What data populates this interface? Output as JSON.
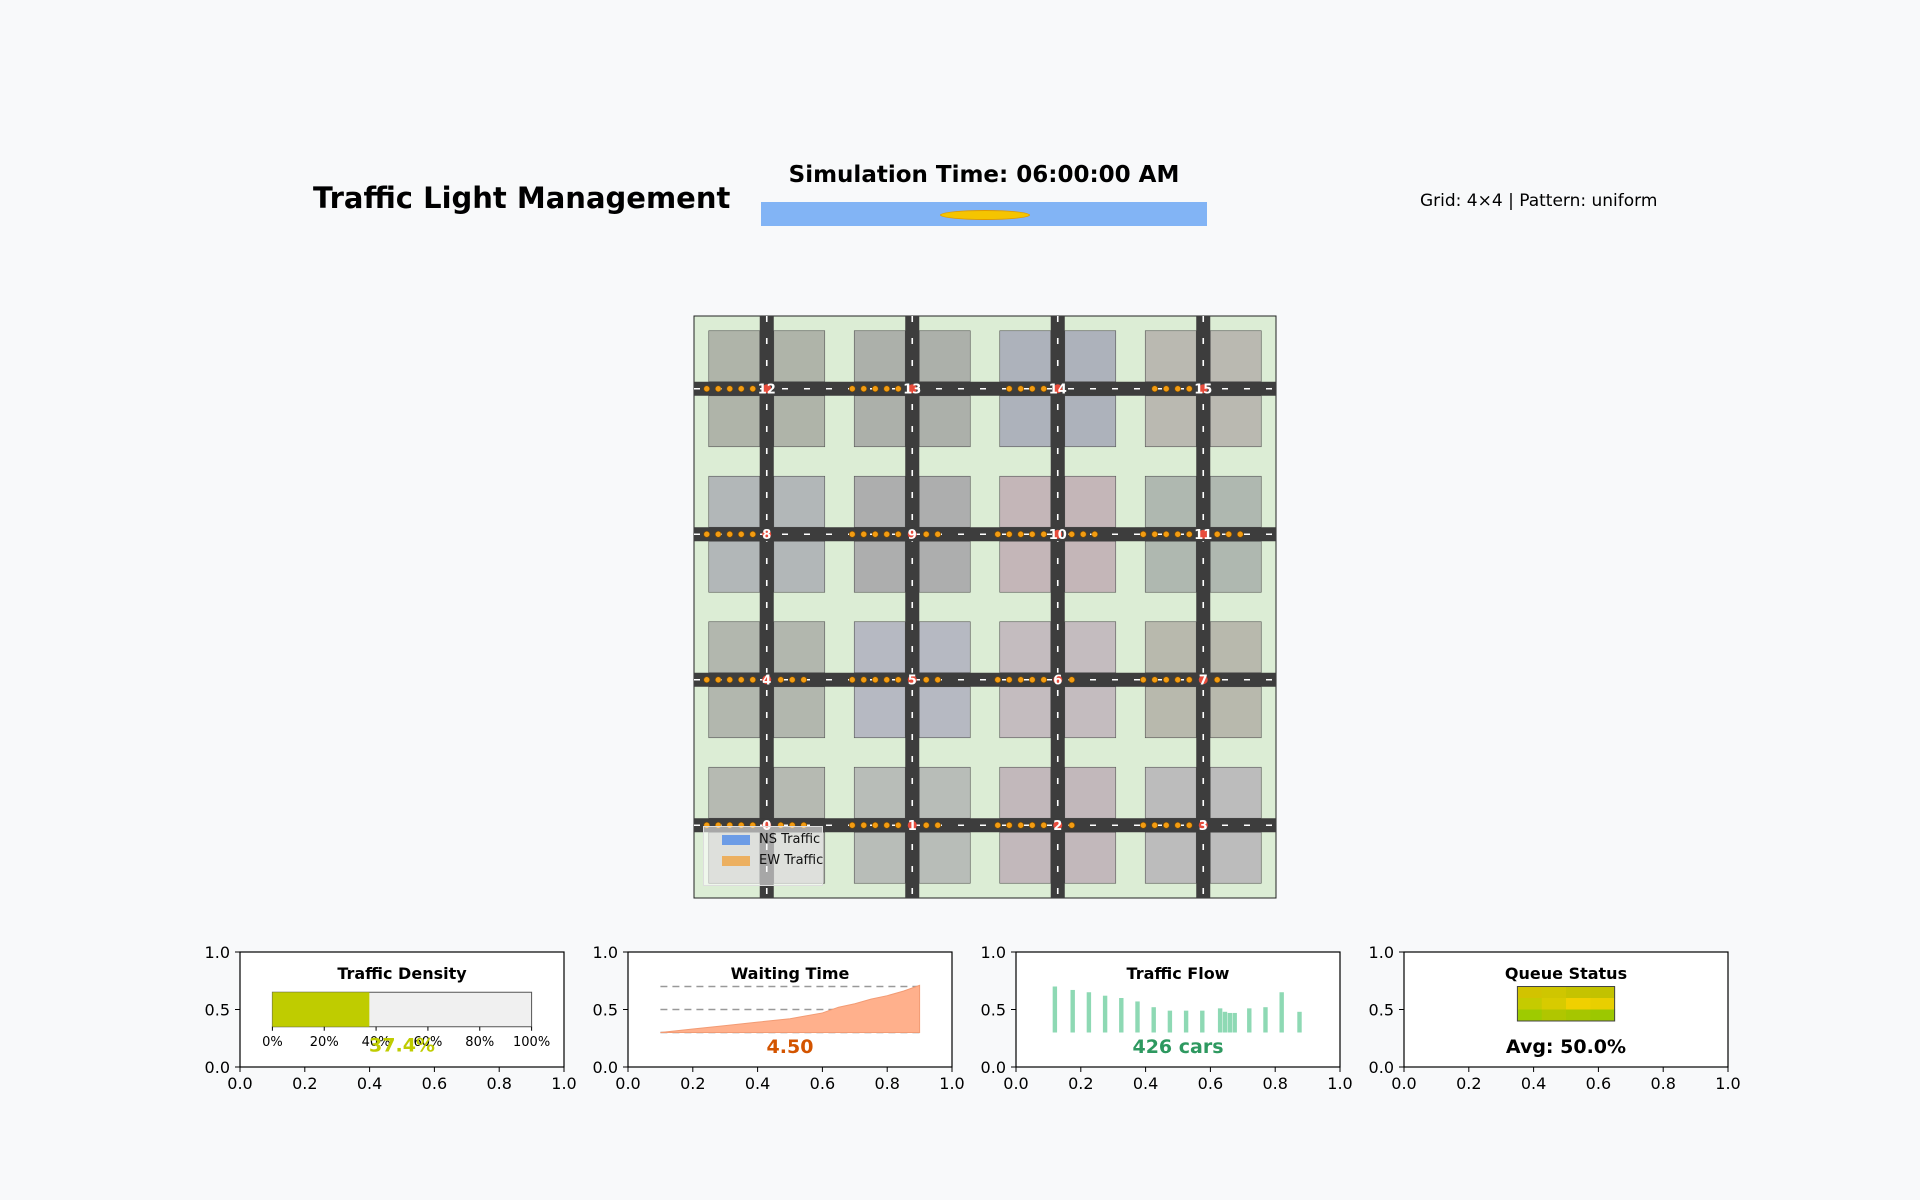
{
  "header": {
    "title": "Traffic Light Management",
    "sim_time": "Simulation Time: 06:00:00 AM",
    "grid_info": "Grid: 4×4 | Pattern: uniform"
  },
  "colors": {
    "page_bg": "#f8f9fa",
    "sky": "#82b4f5",
    "sun": "#f5c400",
    "grass": "#dcedd5",
    "road": "#3d3d3d",
    "car": "#f39c12",
    "density": "#bfcc00",
    "waiting": "#ffb08c",
    "waiting_text": "#d35400",
    "flow": "#8ed9b4",
    "flow_text": "#2e9960"
  },
  "map": {
    "grid_size": 4,
    "intersections": [
      {
        "id": "0",
        "row": 0,
        "col": 0,
        "cars_left": 5,
        "cars_right": 3
      },
      {
        "id": "1",
        "row": 0,
        "col": 1,
        "cars_left": 5,
        "cars_right": 2
      },
      {
        "id": "2",
        "row": 0,
        "col": 2,
        "cars_left": 5,
        "cars_right": 1
      },
      {
        "id": "3",
        "row": 0,
        "col": 3,
        "cars_left": 5,
        "cars_right": 0
      },
      {
        "id": "4",
        "row": 1,
        "col": 0,
        "cars_left": 5,
        "cars_right": 3
      },
      {
        "id": "5",
        "row": 1,
        "col": 1,
        "cars_left": 5,
        "cars_right": 2
      },
      {
        "id": "6",
        "row": 1,
        "col": 2,
        "cars_left": 5,
        "cars_right": 1
      },
      {
        "id": "7",
        "row": 1,
        "col": 3,
        "cars_left": 5,
        "cars_right": 1
      },
      {
        "id": "8",
        "row": 2,
        "col": 0,
        "cars_left": 5,
        "cars_right": 0
      },
      {
        "id": "9",
        "row": 2,
        "col": 1,
        "cars_left": 5,
        "cars_right": 2
      },
      {
        "id": "10",
        "row": 2,
        "col": 2,
        "cars_left": 5,
        "cars_right": 3
      },
      {
        "id": "11",
        "row": 2,
        "col": 3,
        "cars_left": 5,
        "cars_right": 3
      },
      {
        "id": "12",
        "row": 3,
        "col": 0,
        "cars_left": 5,
        "cars_right": 0
      },
      {
        "id": "13",
        "row": 3,
        "col": 1,
        "cars_left": 5,
        "cars_right": 0
      },
      {
        "id": "14",
        "row": 3,
        "col": 2,
        "cars_left": 4,
        "cars_right": 0
      },
      {
        "id": "15",
        "row": 3,
        "col": 3,
        "cars_left": 4,
        "cars_right": 0
      }
    ],
    "block_colors": [
      [
        "#b6bab2",
        "#b8bdb8",
        "#c2b8bb",
        "#bcbcbc"
      ],
      [
        "#b2b7ae",
        "#b6b9c2",
        "#c4bcbf",
        "#b8b9ad"
      ],
      [
        "#b2b7b8",
        "#adaeae",
        "#c4b6b8",
        "#afb8b0"
      ],
      [
        "#afb4a9",
        "#acb0aa",
        "#adb2bb",
        "#bab9b1"
      ]
    ],
    "legend": [
      {
        "label": "NS Traffic",
        "color": "#6c9ce6"
      },
      {
        "label": "EW Traffic",
        "color": "#ecb060"
      }
    ]
  },
  "chart_data": [
    {
      "type": "bar",
      "title": "Traffic Density",
      "values": [
        0.374
      ],
      "value_label": "37.4%",
      "ticks": [
        "0%",
        "20%",
        "40%",
        "60%",
        "80%",
        "100%"
      ],
      "xlim": [
        0,
        1
      ],
      "ylim": [
        0,
        1
      ],
      "axis_x_ticks": [
        "0.0",
        "0.2",
        "0.4",
        "0.6",
        "0.8",
        "1.0"
      ],
      "axis_y_ticks": [
        "0.0",
        "0.5",
        "1.0"
      ]
    },
    {
      "type": "area",
      "title": "Waiting Time",
      "value_label": "4.50",
      "x": [
        0.1,
        0.2,
        0.3,
        0.4,
        0.5,
        0.6,
        0.65,
        0.7,
        0.75,
        0.8,
        0.85,
        0.9
      ],
      "y": [
        0.3,
        0.33,
        0.36,
        0.39,
        0.42,
        0.47,
        0.52,
        0.55,
        0.59,
        0.62,
        0.66,
        0.71
      ],
      "reference_lines": [
        0.3,
        0.5,
        0.7
      ],
      "xlim": [
        0,
        1
      ],
      "ylim": [
        0,
        1
      ],
      "axis_x_ticks": [
        "0.0",
        "0.2",
        "0.4",
        "0.6",
        "0.8",
        "1.0"
      ],
      "axis_y_ticks": [
        "0.0",
        "0.5",
        "1.0"
      ]
    },
    {
      "type": "bar",
      "title": "Traffic Flow",
      "value_label": "426 cars",
      "x": [
        0.12,
        0.175,
        0.225,
        0.275,
        0.325,
        0.375,
        0.425,
        0.475,
        0.525,
        0.575,
        0.63,
        0.645,
        0.66,
        0.675,
        0.72,
        0.77,
        0.82,
        0.875
      ],
      "y": [
        0.7,
        0.67,
        0.65,
        0.62,
        0.6,
        0.57,
        0.52,
        0.49,
        0.49,
        0.49,
        0.51,
        0.48,
        0.47,
        0.47,
        0.51,
        0.52,
        0.65,
        0.48
      ],
      "baseline": 0.3,
      "xlim": [
        0,
        1
      ],
      "ylim": [
        0,
        1
      ],
      "axis_x_ticks": [
        "0.0",
        "0.2",
        "0.4",
        "0.6",
        "0.8",
        "1.0"
      ],
      "axis_y_ticks": [
        "0.0",
        "0.5",
        "1.0"
      ]
    },
    {
      "type": "heatmap",
      "title": "Queue Status",
      "value_label": "Avg: 50.0%",
      "cells": [
        [
          "#d2c300",
          "#cfc600",
          "#c5c300",
          "#c2c200"
        ],
        [
          "#c5cb00",
          "#d7cb00",
          "#f0d000",
          "#e8cf00"
        ],
        [
          "#9ecb00",
          "#b0c600",
          "#a6c600",
          "#9cc800"
        ]
      ],
      "xlim": [
        0,
        1
      ],
      "ylim": [
        0,
        1
      ],
      "axis_x_ticks": [
        "0.0",
        "0.2",
        "0.4",
        "0.6",
        "0.8",
        "1.0"
      ],
      "axis_y_ticks": [
        "0.0",
        "0.5",
        "1.0"
      ]
    }
  ]
}
